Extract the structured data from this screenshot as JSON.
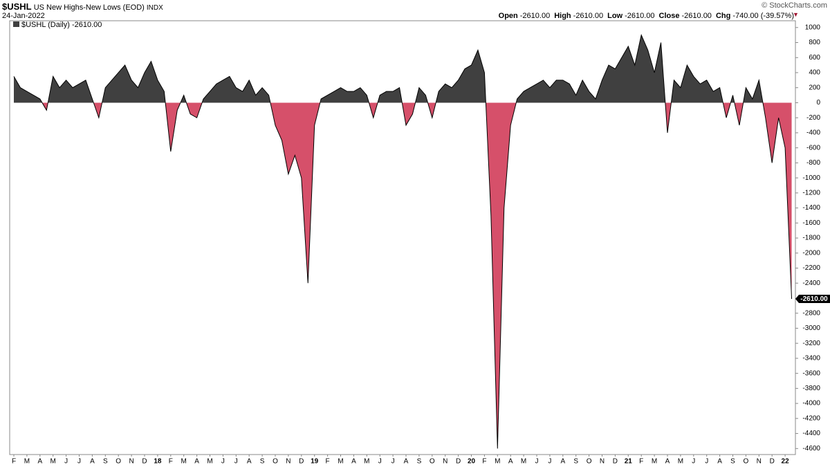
{
  "header": {
    "symbol": "$USHL",
    "name": "US New Highs-New Lows (EOD)",
    "exchange": "INDX",
    "date": "24-Jan-2022",
    "copyright": "© StockCharts.com",
    "quote": [
      {
        "label": "Open",
        "value": "-2610.00"
      },
      {
        "label": "High",
        "value": "-2610.00"
      },
      {
        "label": "Low",
        "value": "-2610.00"
      },
      {
        "label": "Close",
        "value": "-2610.00"
      },
      {
        "label": "Chg",
        "value": "-740.00 (-39.57%)"
      }
    ]
  },
  "chart_data": {
    "type": "area",
    "legend": "$USHL (Daily) -2610.00",
    "last_value_label": "-2610.00",
    "line_color": "#000000",
    "positive_color": "#404040",
    "negative_color": "#d6506a",
    "categories": [
      "F",
      null,
      "M",
      null,
      "A",
      null,
      "M",
      null,
      "J",
      null,
      "J",
      null,
      "A",
      null,
      "S",
      null,
      "O",
      null,
      "N",
      null,
      "D",
      null,
      "18",
      null,
      "F",
      null,
      "M",
      null,
      "A",
      null,
      "M",
      null,
      "J",
      null,
      "J",
      null,
      "A",
      null,
      "S",
      null,
      "O",
      null,
      "N",
      null,
      "D",
      null,
      "19",
      null,
      "F",
      null,
      "M",
      null,
      "A",
      null,
      "M",
      null,
      "J",
      null,
      "J",
      null,
      "A",
      null,
      "S",
      null,
      "O",
      null,
      "N",
      null,
      "D",
      null,
      "20",
      null,
      "F",
      null,
      "M",
      null,
      "A",
      null,
      "M",
      null,
      "J",
      null,
      "J",
      null,
      "A",
      null,
      "S",
      null,
      "O",
      null,
      "N",
      null,
      "D",
      null,
      "21",
      null,
      "F",
      null,
      "M",
      null,
      "A",
      null,
      "M",
      null,
      "J",
      null,
      "J",
      null,
      "A",
      null,
      "S",
      null,
      "O",
      null,
      "N",
      null,
      "D",
      null,
      "22",
      null
    ],
    "values": [
      350,
      200,
      150,
      100,
      50,
      -100,
      350,
      200,
      300,
      200,
      250,
      300,
      50,
      -200,
      200,
      300,
      400,
      500,
      300,
      200,
      400,
      550,
      300,
      150,
      -650,
      -100,
      100,
      -150,
      -200,
      50,
      150,
      250,
      300,
      350,
      200,
      150,
      300,
      100,
      200,
      100,
      -300,
      -500,
      -950,
      -700,
      -1000,
      -2400,
      -300,
      50,
      100,
      150,
      200,
      150,
      150,
      200,
      100,
      -200,
      100,
      150,
      150,
      200,
      -300,
      -150,
      200,
      100,
      -200,
      150,
      250,
      200,
      300,
      450,
      500,
      700,
      400,
      -1500,
      -4600,
      -1400,
      -300,
      50,
      150,
      200,
      250,
      300,
      200,
      300,
      300,
      250,
      100,
      300,
      150,
      50,
      300,
      500,
      450,
      600,
      750,
      500,
      900,
      700,
      400,
      800,
      -400,
      300,
      200,
      500,
      350,
      250,
      300,
      150,
      200,
      -200,
      100,
      -300,
      200,
      50,
      300,
      -200,
      -800,
      -200,
      -600,
      -2610
    ],
    "ylim": [
      -4680,
      1090
    ],
    "yticks": [
      -4600,
      -4400,
      -4200,
      -4000,
      -3800,
      -3600,
      -3400,
      -3200,
      -3000,
      -2800,
      -2600,
      -2400,
      -2200,
      -2000,
      -1800,
      -1600,
      -1400,
      -1200,
      -1000,
      -800,
      -600,
      -400,
      -200,
      0,
      200,
      400,
      600,
      800,
      1000
    ]
  }
}
